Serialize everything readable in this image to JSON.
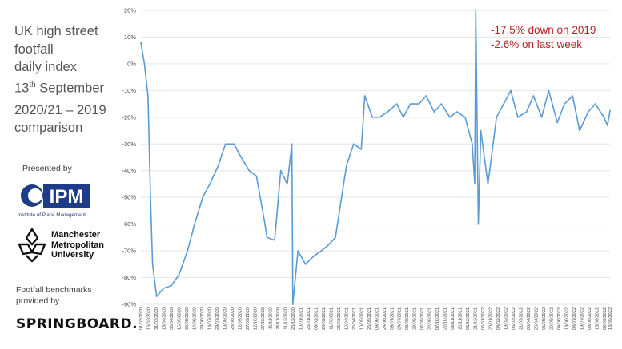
{
  "header": {
    "title_line1": "UK high street",
    "title_line2": "footfall",
    "title_line3": "daily index",
    "title_line4_num": "13",
    "title_line4_sup": "th",
    "title_line4_rest": " September",
    "subtitle_line1": "2020/21 – 2019",
    "subtitle_line2": "comparison"
  },
  "sidebar": {
    "presented_by": "Presented by",
    "ipm_logo_text": "IPM",
    "ipm_logo_subtext": "Institute of Place Management",
    "mmu_line1": "Manchester",
    "mmu_line2": "Metropolitan",
    "mmu_line3": "University",
    "benchmarks_line1": "Footfall benchmarks",
    "benchmarks_line2": "provided by",
    "springboard": "SPRINGBOARD."
  },
  "annotations": {
    "line1": "-17.5% down on 2019",
    "line2": "-2.6% on last week"
  },
  "colors": {
    "series": "#5b9bd5",
    "annotation": "#b22222",
    "ipm_blue": "#1f3c88",
    "grid": "#e6e6e6"
  },
  "chart_data": {
    "type": "line",
    "title": "",
    "xlabel": "",
    "ylabel": "",
    "ylim": [
      -0.9,
      0.2
    ],
    "y_ticks": [
      0.2,
      0.1,
      0.0,
      -0.1,
      -0.2,
      -0.3,
      -0.4,
      -0.5,
      -0.6,
      -0.7,
      -0.8,
      -0.9
    ],
    "y_tick_labels": [
      "20%",
      "10%",
      "0%",
      "-10%",
      "-20%",
      "-30%",
      "-40%",
      "-50%",
      "-60%",
      "-70%",
      "-80%",
      "-90%"
    ],
    "x_tick_labels": [
      "01/03/2020",
      "16/03/2020",
      "31/03/2020",
      "15/04/2020",
      "30/04/2020",
      "15/05/2020",
      "30/05/2020",
      "14/06/2020",
      "29/06/2020",
      "14/07/2020",
      "29/07/2020",
      "13/08/2020",
      "28/08/2020",
      "12/09/2020",
      "27/09/2020",
      "12/10/2020",
      "27/10/2020",
      "11/11/2020",
      "26/11/2020",
      "11/12/2020",
      "26/12/2020",
      "10/01/2021",
      "25/01/2021",
      "09/02/2021",
      "24/02/2021",
      "11/03/2021",
      "26/03/2021",
      "10/04/2021",
      "25/04/2021",
      "10/05/2021",
      "25/05/2021",
      "09/06/2021",
      "24/06/2021",
      "09/07/2021",
      "24/07/2021",
      "08/08/2021",
      "23/08/2021",
      "07/09/2021",
      "22/09/2021",
      "07/10/2021",
      "22/10/2021",
      "06/11/2021",
      "21/11/2021",
      "06/12/2021",
      "21/12/2021",
      "05/01/2022",
      "20/01/2022",
      "04/02/2022",
      "19/02/2022",
      "06/03/2022",
      "21/03/2022",
      "05/04/2022",
      "20/04/2022",
      "05/05/2022",
      "20/05/2022",
      "04/06/2022",
      "19/06/2022",
      "04/07/2022",
      "19/07/2022",
      "03/08/2022",
      "18/08/2022",
      "02/09/2022",
      "13/09/2022"
    ],
    "series": [
      {
        "x": [
          "01/03/2020",
          "08/03/2020",
          "15/03/2020",
          "20/03/2020",
          "24/03/2020",
          "01/04/2020",
          "15/04/2020",
          "30/04/2020",
          "15/05/2020",
          "01/06/2020",
          "15/06/2020",
          "01/07/2020",
          "15/07/2020",
          "01/08/2020",
          "15/08/2020",
          "01/09/2020",
          "15/09/2020",
          "01/10/2020",
          "15/10/2020",
          "01/11/2020",
          "05/11/2020",
          "20/11/2020",
          "02/12/2020",
          "15/12/2020",
          "24/12/2020",
          "26/12/2020",
          "05/01/2021",
          "20/01/2021",
          "05/02/2021",
          "20/02/2021",
          "05/03/2021",
          "20/03/2021",
          "11/04/2021",
          "25/04/2021",
          "10/05/2021",
          "17/05/2021",
          "01/06/2021",
          "15/06/2021",
          "01/07/2021",
          "19/07/2021",
          "01/08/2021",
          "15/08/2021",
          "01/09/2021",
          "15/09/2021",
          "01/10/2021",
          "15/10/2021",
          "01/11/2021",
          "15/11/2021",
          "01/12/2021",
          "15/12/2021",
          "20/12/2021",
          "22/12/2021",
          "27/12/2021",
          "01/01/2022",
          "15/01/2022",
          "01/02/2022",
          "15/02/2022",
          "01/03/2022",
          "15/03/2022",
          "01/04/2022",
          "15/04/2022",
          "01/05/2022",
          "15/05/2022",
          "01/06/2022",
          "15/06/2022",
          "01/07/2022",
          "15/07/2022",
          "01/08/2022",
          "15/08/2022",
          "01/09/2022",
          "08/09/2022",
          "13/09/2022"
        ],
        "values": [
          0.08,
          0.0,
          -0.12,
          -0.5,
          -0.75,
          -0.87,
          -0.84,
          -0.83,
          -0.79,
          -0.7,
          -0.6,
          -0.5,
          -0.45,
          -0.38,
          -0.3,
          -0.3,
          -0.35,
          -0.4,
          -0.42,
          -0.6,
          -0.65,
          -0.66,
          -0.4,
          -0.45,
          -0.3,
          -0.9,
          -0.7,
          -0.75,
          -0.72,
          -0.7,
          -0.68,
          -0.65,
          -0.38,
          -0.3,
          -0.32,
          -0.12,
          -0.2,
          -0.2,
          -0.18,
          -0.15,
          -0.2,
          -0.15,
          -0.15,
          -0.12,
          -0.18,
          -0.15,
          -0.2,
          -0.18,
          -0.2,
          -0.3,
          -0.45,
          0.2,
          -0.6,
          -0.25,
          -0.45,
          -0.2,
          -0.15,
          -0.1,
          -0.2,
          -0.18,
          -0.12,
          -0.2,
          -0.1,
          -0.22,
          -0.15,
          -0.12,
          -0.25,
          -0.18,
          -0.15,
          -0.2,
          -0.23,
          -0.175
        ]
      }
    ]
  }
}
